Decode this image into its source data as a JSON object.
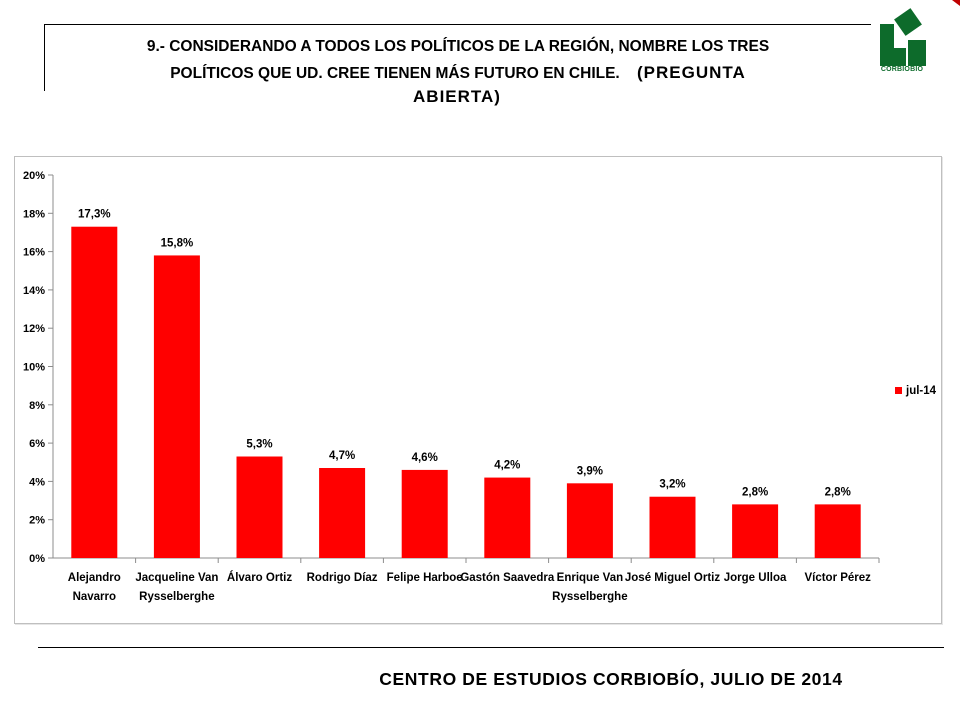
{
  "title": {
    "line1": "9.- CONSIDERANDO A TODOS LOS POLÍTICOS DE LA REGIÓN, NOMBRE LOS TRES",
    "line2": "POLÍTICOS QUE UD. CREE TIENEN MÁS FUTURO EN CHILE.",
    "tag_part1": "(PREGUNTA",
    "tag_part2": "ABIERTA)"
  },
  "logo": {
    "text": "CORBIOBIO",
    "color": "#0d6b2b"
  },
  "footer": {
    "text": "CENTRO DE ESTUDIOS CORBIOBÍO, JULIO DE 2014"
  },
  "chart_data": {
    "type": "bar",
    "categories": [
      [
        "Alejandro",
        "Navarro"
      ],
      [
        "Jacqueline Van",
        "Rysselberghe"
      ],
      [
        "Álvaro Ortiz"
      ],
      [
        "Rodrigo Díaz"
      ],
      [
        "Felipe Harboe"
      ],
      [
        "Gastón Saavedra"
      ],
      [
        "Enrique Van",
        "Rysselberghe"
      ],
      [
        "José Miguel Ortiz"
      ],
      [
        "Jorge Ulloa"
      ],
      [
        "Víctor Pérez"
      ]
    ],
    "series": [
      {
        "name": "jul-14",
        "color": "#ff0000",
        "values": [
          17.3,
          15.8,
          5.3,
          4.7,
          4.6,
          4.2,
          3.9,
          3.2,
          2.8,
          2.8
        ],
        "labels": [
          "17,3%",
          "15,8%",
          "5,3%",
          "4,7%",
          "4,6%",
          "4,2%",
          "3,9%",
          "3,2%",
          "2,8%",
          "2,8%"
        ]
      }
    ],
    "ylim": [
      0,
      20
    ],
    "yticks": [
      "0%",
      "2%",
      "4%",
      "6%",
      "8%",
      "10%",
      "12%",
      "14%",
      "16%",
      "18%",
      "20%"
    ],
    "grid": false,
    "legend_position": "right"
  }
}
